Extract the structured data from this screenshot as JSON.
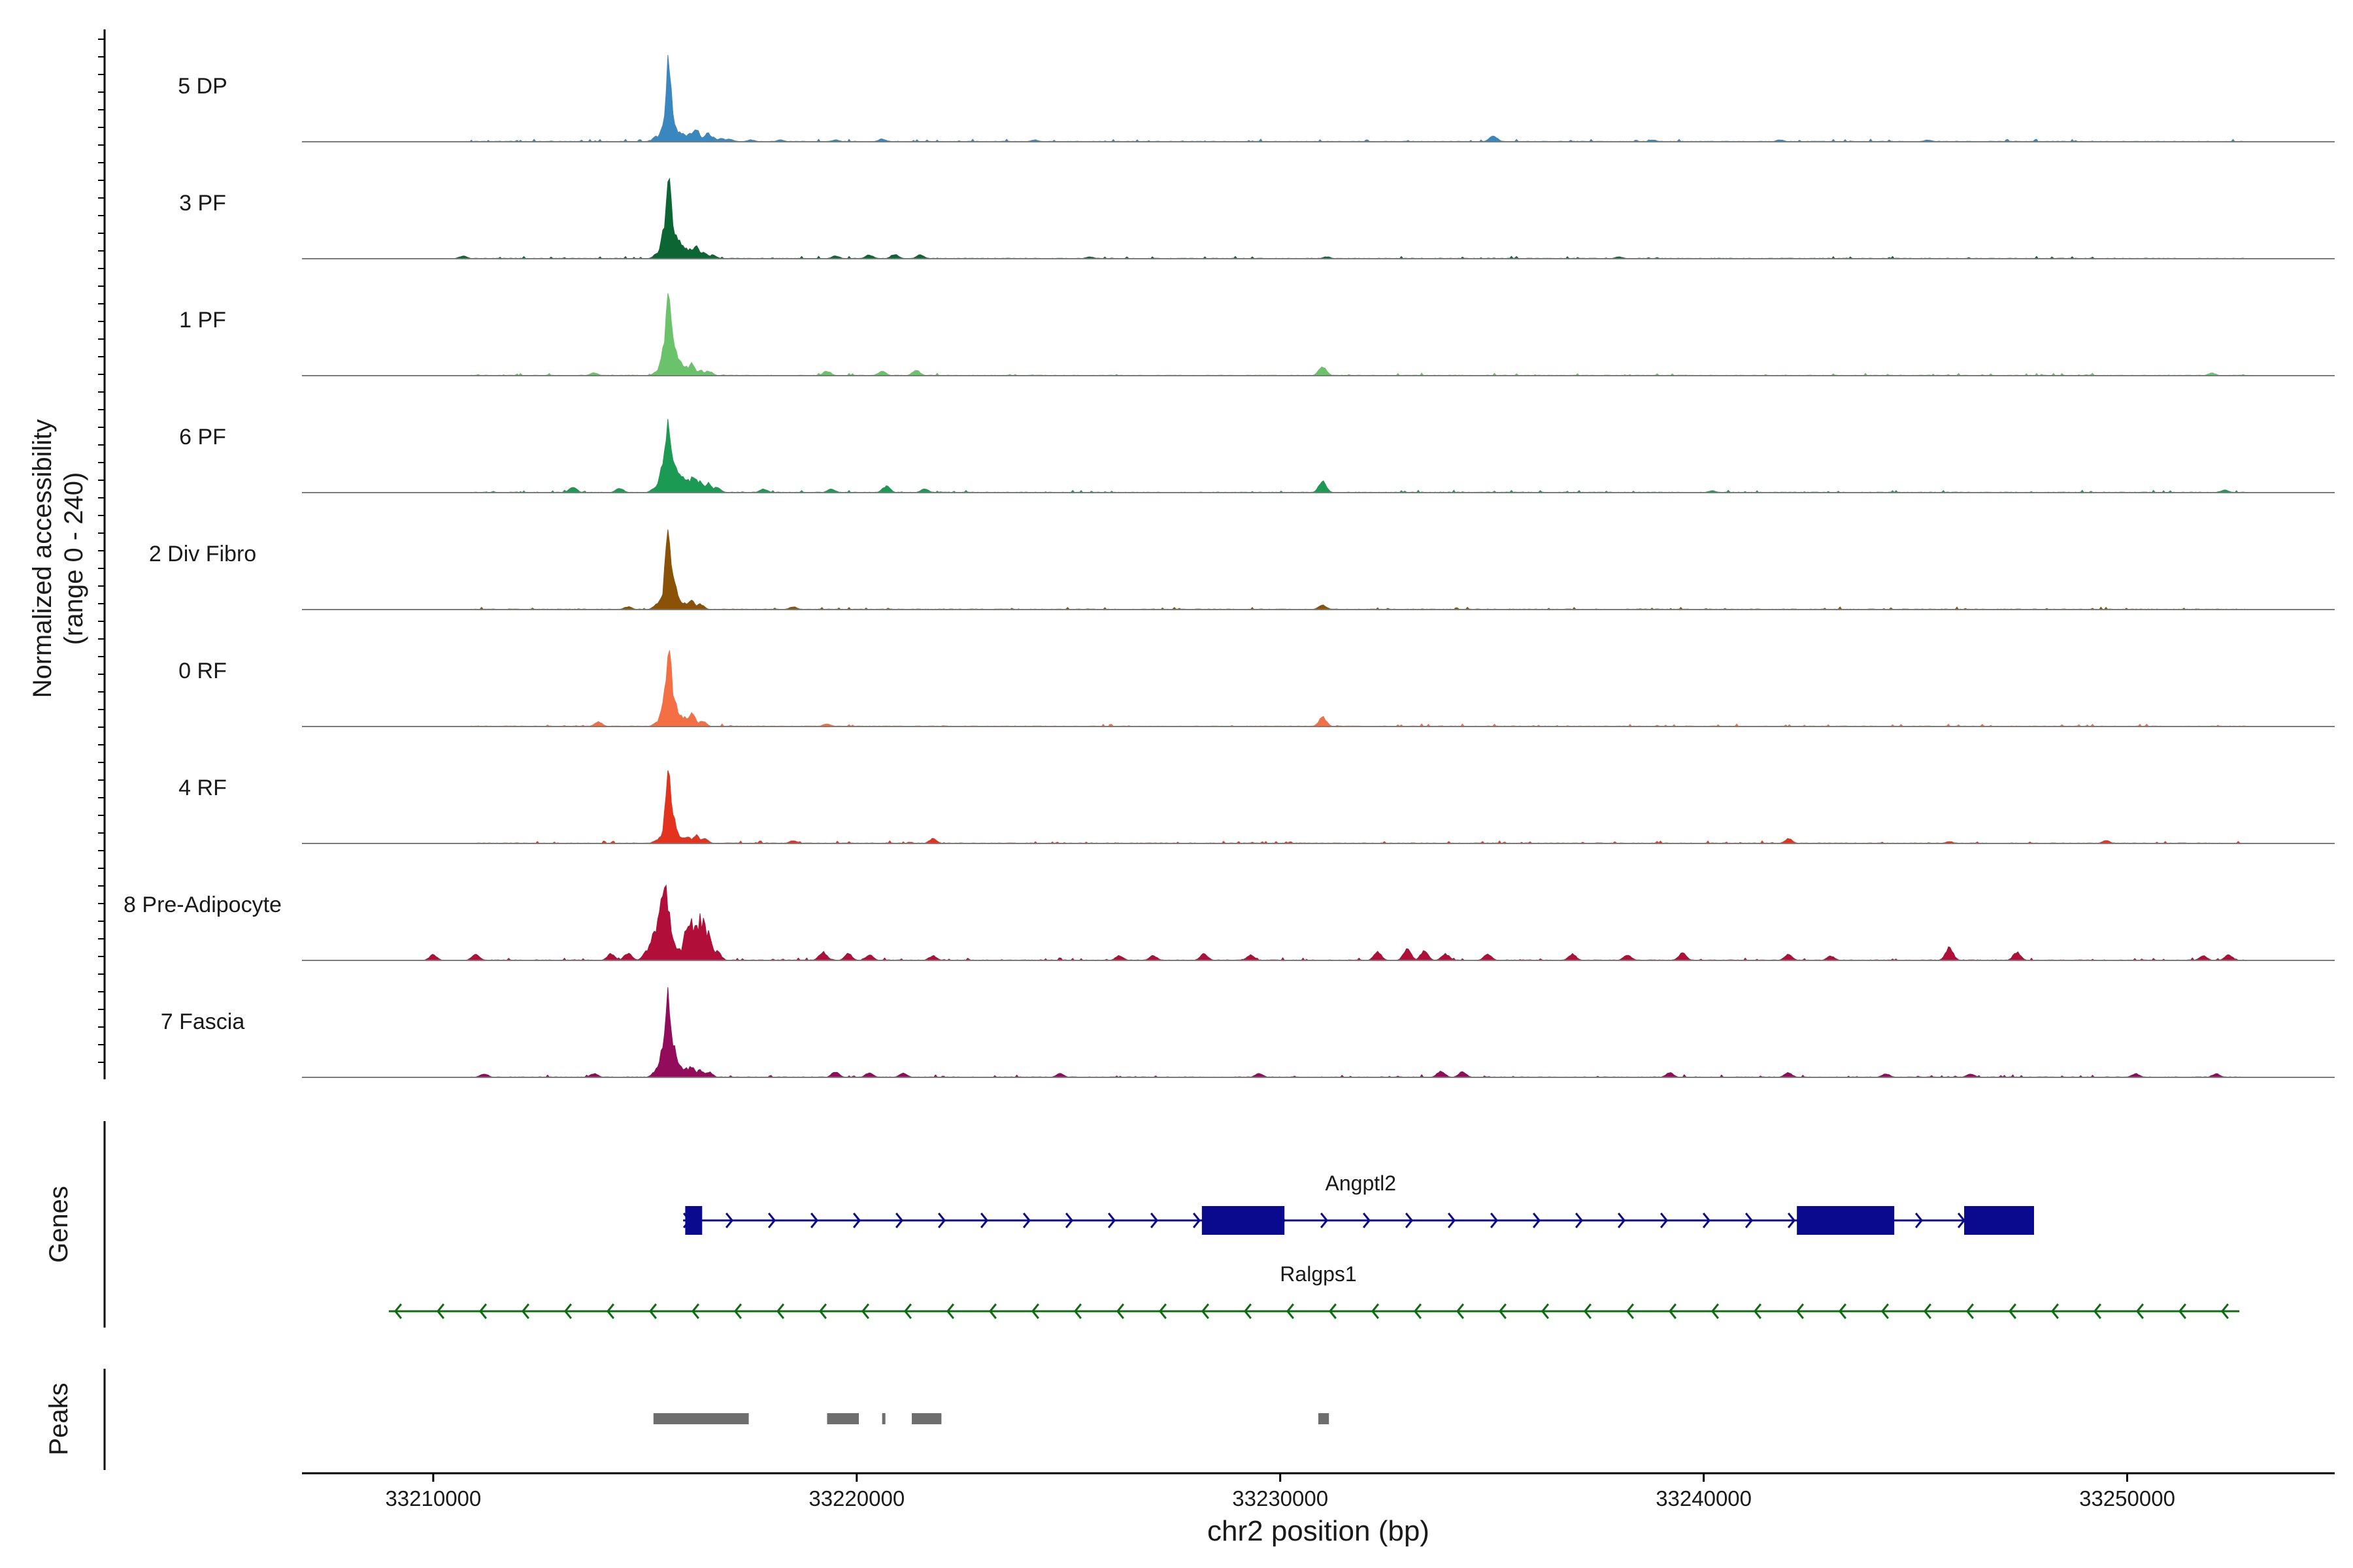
{
  "chart_data": {
    "type": "area",
    "title": "",
    "ylabel_line1": "Normalized accessibility",
    "ylabel_line2": "(range 0 - 240)",
    "xlabel": "chr2 position (bp)",
    "xlim": [
      33206900,
      33254900
    ],
    "ylim": [
      0,
      240
    ],
    "xticks": [
      {
        "value": 33210000,
        "label": "33210000"
      },
      {
        "value": 33220000,
        "label": "33220000"
      },
      {
        "value": 33230000,
        "label": "33230000"
      },
      {
        "value": 33240000,
        "label": "33240000"
      },
      {
        "value": 33250000,
        "label": "33250000"
      }
    ],
    "tracks": [
      {
        "name": "5 DP",
        "color": "#3a87c0",
        "peaks": [
          [
            33215280,
            0.06
          ],
          [
            33215380,
            0.06
          ],
          [
            33215450,
            0.18
          ],
          [
            33215500,
            0.45
          ],
          [
            33215540,
            0.88
          ],
          [
            33215560,
            0.96
          ],
          [
            33215590,
            0.8
          ],
          [
            33215620,
            0.5
          ],
          [
            33215660,
            0.25
          ],
          [
            33215720,
            0.12
          ],
          [
            33215800,
            0.1
          ],
          [
            33215900,
            0.09
          ],
          [
            33216000,
            0.06
          ],
          [
            33216080,
            0.1
          ],
          [
            33216200,
            0.14
          ],
          [
            33216280,
            0.06
          ],
          [
            33216400,
            0.05
          ],
          [
            33216480,
            0.09
          ],
          [
            33216600,
            0.05
          ],
          [
            33216800,
            0.04
          ],
          [
            33217000,
            0.03
          ],
          [
            33217500,
            0.02
          ],
          [
            33218200,
            0.02
          ],
          [
            33219500,
            0.02
          ],
          [
            33220600,
            0.03
          ],
          [
            33224200,
            0.02
          ],
          [
            33235030,
            0.07
          ],
          [
            33238800,
            0.02
          ],
          [
            33241800,
            0.02
          ],
          [
            33245300,
            0.02
          ]
        ]
      },
      {
        "name": "3 PF",
        "color": "#0b6633",
        "peaks": [
          [
            33215300,
            0.06
          ],
          [
            33215400,
            0.1
          ],
          [
            33215480,
            0.35
          ],
          [
            33215530,
            0.75
          ],
          [
            33215560,
            0.95
          ],
          [
            33215600,
            0.7
          ],
          [
            33215640,
            0.45
          ],
          [
            33215700,
            0.3
          ],
          [
            33215780,
            0.2
          ],
          [
            33215850,
            0.15
          ],
          [
            33215950,
            0.12
          ],
          [
            33216050,
            0.1
          ],
          [
            33216200,
            0.14
          ],
          [
            33216400,
            0.07
          ],
          [
            33216600,
            0.04
          ],
          [
            33210700,
            0.03
          ],
          [
            33219500,
            0.03
          ],
          [
            33220300,
            0.04
          ],
          [
            33220900,
            0.05
          ],
          [
            33221500,
            0.04
          ],
          [
            33225500,
            0.02
          ],
          [
            33231100,
            0.02
          ],
          [
            33238000,
            0.02
          ]
        ]
      },
      {
        "name": "1 PF",
        "color": "#6ac26a",
        "peaks": [
          [
            33215300,
            0.05
          ],
          [
            33215400,
            0.1
          ],
          [
            33215480,
            0.4
          ],
          [
            33215530,
            0.8
          ],
          [
            33215560,
            0.96
          ],
          [
            33215600,
            0.7
          ],
          [
            33215640,
            0.45
          ],
          [
            33215700,
            0.3
          ],
          [
            33215800,
            0.18
          ],
          [
            33215950,
            0.1
          ],
          [
            33216100,
            0.13
          ],
          [
            33216300,
            0.06
          ],
          [
            33216500,
            0.05
          ],
          [
            33213800,
            0.03
          ],
          [
            33219300,
            0.05
          ],
          [
            33220600,
            0.05
          ],
          [
            33221400,
            0.06
          ],
          [
            33231000,
            0.1
          ],
          [
            33252000,
            0.03
          ]
        ]
      },
      {
        "name": "6 PF",
        "color": "#1b9a53",
        "peaks": [
          [
            33215250,
            0.06
          ],
          [
            33215350,
            0.12
          ],
          [
            33215440,
            0.3
          ],
          [
            33215500,
            0.65
          ],
          [
            33215550,
            0.78
          ],
          [
            33215600,
            0.6
          ],
          [
            33215650,
            0.4
          ],
          [
            33215720,
            0.25
          ],
          [
            33215800,
            0.2
          ],
          [
            33215900,
            0.18
          ],
          [
            33216000,
            0.15
          ],
          [
            33216150,
            0.18
          ],
          [
            33216300,
            0.12
          ],
          [
            33216500,
            0.1
          ],
          [
            33216700,
            0.06
          ],
          [
            33213300,
            0.06
          ],
          [
            33214400,
            0.05
          ],
          [
            33217800,
            0.04
          ],
          [
            33219400,
            0.04
          ],
          [
            33220700,
            0.07
          ],
          [
            33221600,
            0.04
          ],
          [
            33231000,
            0.12
          ],
          [
            33240200,
            0.02
          ],
          [
            33252300,
            0.03
          ]
        ]
      },
      {
        "name": "2 Div Fibro",
        "color": "#8a5207",
        "peaks": [
          [
            33215300,
            0.06
          ],
          [
            33215400,
            0.12
          ],
          [
            33215480,
            0.45
          ],
          [
            33215530,
            0.82
          ],
          [
            33215560,
            0.9
          ],
          [
            33215600,
            0.6
          ],
          [
            33215650,
            0.35
          ],
          [
            33215720,
            0.18
          ],
          [
            33215800,
            0.1
          ],
          [
            33215950,
            0.07
          ],
          [
            33216100,
            0.1
          ],
          [
            33216300,
            0.06
          ],
          [
            33231000,
            0.05
          ],
          [
            33218500,
            0.03
          ],
          [
            33214600,
            0.03
          ]
        ]
      },
      {
        "name": "0 RF",
        "color": "#f46f43",
        "peaks": [
          [
            33215300,
            0.05
          ],
          [
            33215420,
            0.1
          ],
          [
            33215490,
            0.4
          ],
          [
            33215540,
            0.8
          ],
          [
            33215570,
            0.92
          ],
          [
            33215610,
            0.65
          ],
          [
            33215660,
            0.35
          ],
          [
            33215730,
            0.18
          ],
          [
            33215820,
            0.12
          ],
          [
            33215950,
            0.1
          ],
          [
            33216100,
            0.14
          ],
          [
            33216350,
            0.06
          ],
          [
            33213900,
            0.05
          ],
          [
            33219300,
            0.03
          ],
          [
            33231000,
            0.1
          ]
        ]
      },
      {
        "name": "4 RF",
        "color": "#e3321e",
        "peaks": [
          [
            33215300,
            0.04
          ],
          [
            33215420,
            0.1
          ],
          [
            33215490,
            0.45
          ],
          [
            33215530,
            0.75
          ],
          [
            33215560,
            0.8
          ],
          [
            33215600,
            0.55
          ],
          [
            33215650,
            0.3
          ],
          [
            33215720,
            0.15
          ],
          [
            33215820,
            0.08
          ],
          [
            33216000,
            0.07
          ],
          [
            33216200,
            0.09
          ],
          [
            33216400,
            0.05
          ],
          [
            33218500,
            0.03
          ],
          [
            33221800,
            0.05
          ],
          [
            33242000,
            0.05
          ],
          [
            33245800,
            0.02
          ],
          [
            33249500,
            0.03
          ]
        ]
      },
      {
        "name": "8 Pre-Adipocyte",
        "color": "#b10e3a",
        "peaks": [
          [
            33215050,
            0.12
          ],
          [
            33215150,
            0.18
          ],
          [
            33215250,
            0.35
          ],
          [
            33215330,
            0.6
          ],
          [
            33215400,
            0.8
          ],
          [
            33215450,
            0.9
          ],
          [
            33215500,
            0.82
          ],
          [
            33215560,
            0.55
          ],
          [
            33215620,
            0.3
          ],
          [
            33215700,
            0.15
          ],
          [
            33215800,
            0.12
          ],
          [
            33216000,
            0.35
          ],
          [
            33216100,
            0.5
          ],
          [
            33216200,
            0.42
          ],
          [
            33216300,
            0.55
          ],
          [
            33216400,
            0.48
          ],
          [
            33216480,
            0.3
          ],
          [
            33216550,
            0.15
          ],
          [
            33216700,
            0.1
          ],
          [
            33210000,
            0.06
          ],
          [
            33211000,
            0.07
          ],
          [
            33214200,
            0.07
          ],
          [
            33214600,
            0.08
          ],
          [
            33219200,
            0.09
          ],
          [
            33219800,
            0.07
          ],
          [
            33220300,
            0.06
          ],
          [
            33221800,
            0.05
          ],
          [
            33226200,
            0.05
          ],
          [
            33227000,
            0.05
          ],
          [
            33228200,
            0.07
          ],
          [
            33229300,
            0.06
          ],
          [
            33232300,
            0.09
          ],
          [
            33233000,
            0.12
          ],
          [
            33233400,
            0.1
          ],
          [
            33233900,
            0.07
          ],
          [
            33234900,
            0.07
          ],
          [
            33236900,
            0.07
          ],
          [
            33238200,
            0.06
          ],
          [
            33239500,
            0.08
          ],
          [
            33242000,
            0.07
          ],
          [
            33243000,
            0.05
          ],
          [
            33245800,
            0.14
          ],
          [
            33247400,
            0.09
          ],
          [
            33251800,
            0.05
          ],
          [
            33252400,
            0.06
          ]
        ]
      },
      {
        "name": "7 Fascia",
        "color": "#930c5b",
        "peaks": [
          [
            33215250,
            0.06
          ],
          [
            33215350,
            0.15
          ],
          [
            33215440,
            0.35
          ],
          [
            33215500,
            0.72
          ],
          [
            33215540,
            0.9
          ],
          [
            33215580,
            0.72
          ],
          [
            33215640,
            0.4
          ],
          [
            33215720,
            0.2
          ],
          [
            33215820,
            0.12
          ],
          [
            33215950,
            0.1
          ],
          [
            33216100,
            0.12
          ],
          [
            33216300,
            0.08
          ],
          [
            33216500,
            0.06
          ],
          [
            33211200,
            0.04
          ],
          [
            33213800,
            0.04
          ],
          [
            33219500,
            0.06
          ],
          [
            33220300,
            0.05
          ],
          [
            33221100,
            0.05
          ],
          [
            33224800,
            0.04
          ],
          [
            33229500,
            0.04
          ],
          [
            33233800,
            0.07
          ],
          [
            33234300,
            0.06
          ],
          [
            33239200,
            0.05
          ],
          [
            33242000,
            0.05
          ],
          [
            33244300,
            0.04
          ],
          [
            33246300,
            0.04
          ],
          [
            33250200,
            0.04
          ],
          [
            33252100,
            0.04
          ]
        ]
      }
    ],
    "genes": [
      {
        "name": "Angptl2",
        "strand": "+",
        "color": "#0a0a8f",
        "start": 33215900,
        "end": 33247750,
        "exons": [
          [
            33215950,
            33216350
          ],
          [
            33228150,
            33230100
          ],
          [
            33242200,
            33244500
          ],
          [
            33246150,
            33247800
          ]
        ]
      },
      {
        "name": "Ralgps1",
        "strand": "-",
        "color": "#0d6b12",
        "start": 33208950,
        "end": 33252650,
        "exons": []
      }
    ],
    "peaks_label": "Peaks",
    "genes_label": "Genes",
    "peaks": [
      [
        33215200,
        33217450
      ],
      [
        33219300,
        33220050
      ],
      [
        33220600,
        33220650
      ],
      [
        33221300,
        33222000
      ],
      [
        33230900,
        33231150
      ]
    ]
  }
}
